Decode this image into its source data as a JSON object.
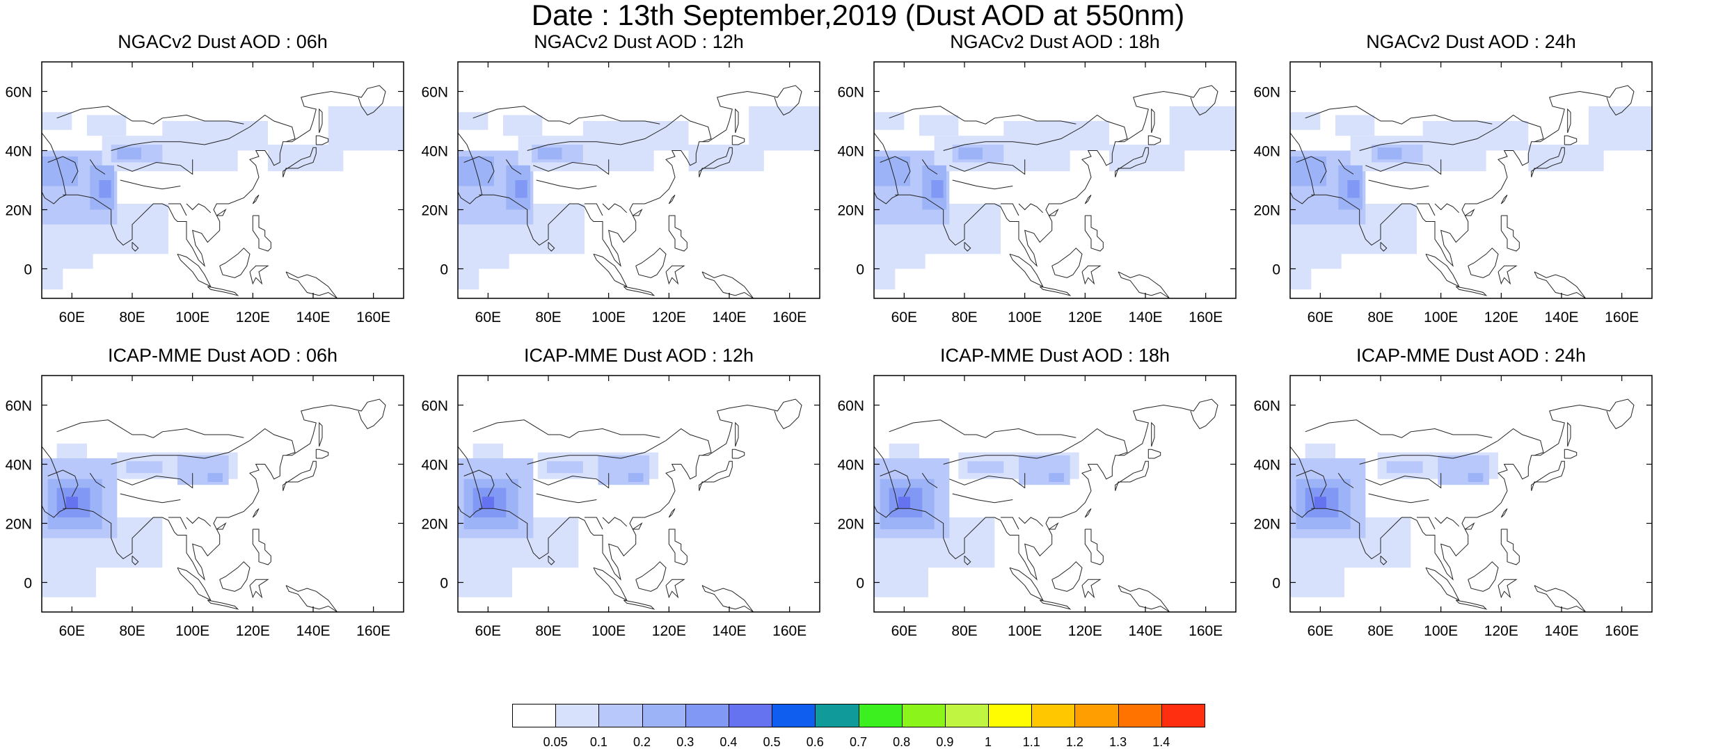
{
  "title": "Date : 13th September,2019 (Dust AOD at 550nm)",
  "map_extent": {
    "lon": [
      50,
      170
    ],
    "lat": [
      -10,
      70
    ]
  },
  "axes": {
    "lon_ticks": [
      60,
      80,
      100,
      120,
      140,
      160
    ],
    "lon_labels": [
      "60E",
      "80E",
      "100E",
      "120E",
      "140E",
      "160E"
    ],
    "lat_ticks": [
      0,
      20,
      40,
      60
    ],
    "lat_labels": [
      "0",
      "20N",
      "40N",
      "60N"
    ]
  },
  "panels": [
    {
      "title": "NGACv2 Dust AOD : 06h",
      "model": "ngac",
      "hour": 6
    },
    {
      "title": "NGACv2 Dust AOD : 12h",
      "model": "ngac",
      "hour": 12
    },
    {
      "title": "NGACv2 Dust AOD : 18h",
      "model": "ngac",
      "hour": 18
    },
    {
      "title": "NGACv2 Dust AOD : 24h",
      "model": "ngac",
      "hour": 24
    },
    {
      "title": "ICAP-MME Dust AOD : 06h",
      "model": "icap",
      "hour": 6
    },
    {
      "title": "ICAP-MME Dust AOD : 12h",
      "model": "icap",
      "hour": 12
    },
    {
      "title": "ICAP-MME Dust AOD : 18h",
      "model": "icap",
      "hour": 18
    },
    {
      "title": "ICAP-MME Dust AOD : 24h",
      "model": "icap",
      "hour": 24
    }
  ],
  "colorbar": {
    "labels": [
      "0.05",
      "0.1",
      "0.2",
      "0.3",
      "0.4",
      "0.5",
      "0.6",
      "0.7",
      "0.8",
      "0.9",
      "1",
      "1.1",
      "1.2",
      "1.3",
      "1.4"
    ],
    "colors": [
      "#ffffff",
      "#d8e1fc",
      "#b9c8fa",
      "#9db3f7",
      "#8199f5",
      "#6673f0",
      "#0f5ef0",
      "#119a9a",
      "#3cf01f",
      "#8bf51b",
      "#c0f541",
      "#fffb00",
      "#ffc700",
      "#ff9e00",
      "#ff7300",
      "#ff2f10"
    ]
  },
  "dust_fields": {
    "ngac": [
      {
        "lon": [
          50,
          57
        ],
        "lat": [
          -7,
          25
        ],
        "aod": 0.07
      },
      {
        "lon": [
          50,
          67
        ],
        "lat": [
          0,
          22
        ],
        "aod": 0.07
      },
      {
        "lon": [
          55,
          92
        ],
        "lat": [
          5,
          22
        ],
        "aod": 0.07
      },
      {
        "lon": [
          50,
          75
        ],
        "lat": [
          15,
          40
        ],
        "aod": 0.15
      },
      {
        "lon": [
          70,
          115
        ],
        "lat": [
          33,
          45
        ],
        "aod": 0.07
      },
      {
        "lon": [
          73,
          90
        ],
        "lat": [
          36,
          42
        ],
        "aod": 0.15
      },
      {
        "lon": [
          75,
          83
        ],
        "lat": [
          37,
          41
        ],
        "aod": 0.25
      },
      {
        "lon": [
          90,
          125
        ],
        "lat": [
          40,
          50
        ],
        "aod": 0.07
      },
      {
        "lon": [
          125,
          150
        ],
        "lat": [
          33,
          42
        ],
        "aod": 0.07
      },
      {
        "lon": [
          145,
          170
        ],
        "lat": [
          40,
          55
        ],
        "aod": 0.07
      },
      {
        "lon": [
          50,
          60
        ],
        "lat": [
          47,
          53
        ],
        "aod": 0.07
      },
      {
        "lon": [
          65,
          78
        ],
        "lat": [
          45,
          52
        ],
        "aod": 0.07
      },
      {
        "lon": [
          66,
          74
        ],
        "lat": [
          20,
          35
        ],
        "aod": 0.25
      },
      {
        "lon": [
          69,
          73
        ],
        "lat": [
          24,
          30
        ],
        "aod": 0.35
      },
      {
        "lon": [
          50,
          62
        ],
        "lat": [
          28,
          38
        ],
        "aod": 0.25
      }
    ],
    "icap": [
      {
        "lon": [
          50,
          68
        ],
        "lat": [
          -5,
          25
        ],
        "aod": 0.07
      },
      {
        "lon": [
          55,
          90
        ],
        "lat": [
          5,
          22
        ],
        "aod": 0.07
      },
      {
        "lon": [
          50,
          75
        ],
        "lat": [
          15,
          42
        ],
        "aod": 0.15
      },
      {
        "lon": [
          52,
          70
        ],
        "lat": [
          18,
          35
        ],
        "aod": 0.25
      },
      {
        "lon": [
          55,
          66
        ],
        "lat": [
          22,
          32
        ],
        "aod": 0.35
      },
      {
        "lon": [
          58,
          62
        ],
        "lat": [
          25,
          29
        ],
        "aod": 0.45
      },
      {
        "lon": [
          75,
          115
        ],
        "lat": [
          35,
          44
        ],
        "aod": 0.07
      },
      {
        "lon": [
          78,
          90
        ],
        "lat": [
          37,
          41
        ],
        "aod": 0.15
      },
      {
        "lon": [
          95,
          112
        ],
        "lat": [
          33,
          43
        ],
        "aod": 0.15
      },
      {
        "lon": [
          105,
          110
        ],
        "lat": [
          34,
          37
        ],
        "aod": 0.25
      },
      {
        "lon": [
          55,
          65
        ],
        "lat": [
          42,
          47
        ],
        "aod": 0.07
      }
    ],
    "hour_shift_lon": {
      "6": 0,
      "12": 1.5,
      "18": 3,
      "24": 4
    }
  }
}
